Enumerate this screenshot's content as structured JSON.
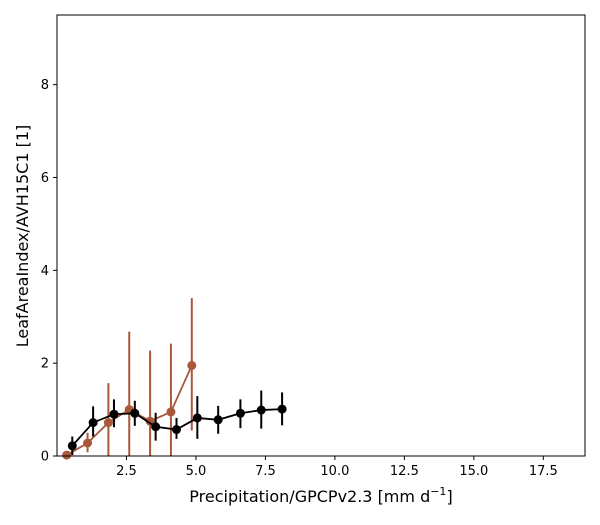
{
  "chart_data": {
    "type": "line",
    "xlabel": "Precipitation/GPCPv2.3 [mm d",
    "xlabel_sup": "−1",
    "xlabel_end": "]",
    "ylabel": "LeafAreaIndex/AVH15C1 [1]",
    "xlim": [
      0,
      19
    ],
    "ylim": [
      0,
      9.5
    ],
    "xticks": [
      2.5,
      5.0,
      7.5,
      10.0,
      12.5,
      15.0,
      17.5
    ],
    "xtick_labels": [
      "2.5",
      "5.0",
      "7.5",
      "10.0",
      "12.5",
      "15.0",
      "17.5"
    ],
    "yticks": [
      0,
      2,
      4,
      6,
      8
    ],
    "ytick_labels": [
      "0",
      "2",
      "4",
      "6",
      "8"
    ],
    "grid": false,
    "series": [
      {
        "color": "#a9583a",
        "x": [
          0.35,
          1.1,
          1.85,
          2.6,
          3.35,
          4.1,
          4.85
        ],
        "y": [
          0.02,
          0.28,
          0.72,
          1.0,
          0.75,
          0.95,
          1.95
        ],
        "err_low": [
          0.02,
          0.2,
          0.72,
          1.0,
          0.75,
          0.95,
          1.4
        ],
        "err_high": [
          0.03,
          0.22,
          0.85,
          1.68,
          1.52,
          1.47,
          1.45
        ]
      },
      {
        "color": "#000000",
        "x": [
          0.55,
          1.3,
          2.05,
          2.8,
          3.55,
          4.3,
          5.05,
          5.8,
          6.6,
          7.35,
          8.1
        ],
        "y": [
          0.22,
          0.72,
          0.9,
          0.92,
          0.63,
          0.57,
          0.82,
          0.78,
          0.92,
          0.99,
          1.01
        ],
        "err_low": [
          0.2,
          0.3,
          0.28,
          0.27,
          0.3,
          0.2,
          0.45,
          0.3,
          0.32,
          0.4,
          0.35
        ],
        "err_high": [
          0.2,
          0.35,
          0.32,
          0.27,
          0.3,
          0.25,
          0.47,
          0.3,
          0.3,
          0.42,
          0.36
        ]
      }
    ]
  }
}
